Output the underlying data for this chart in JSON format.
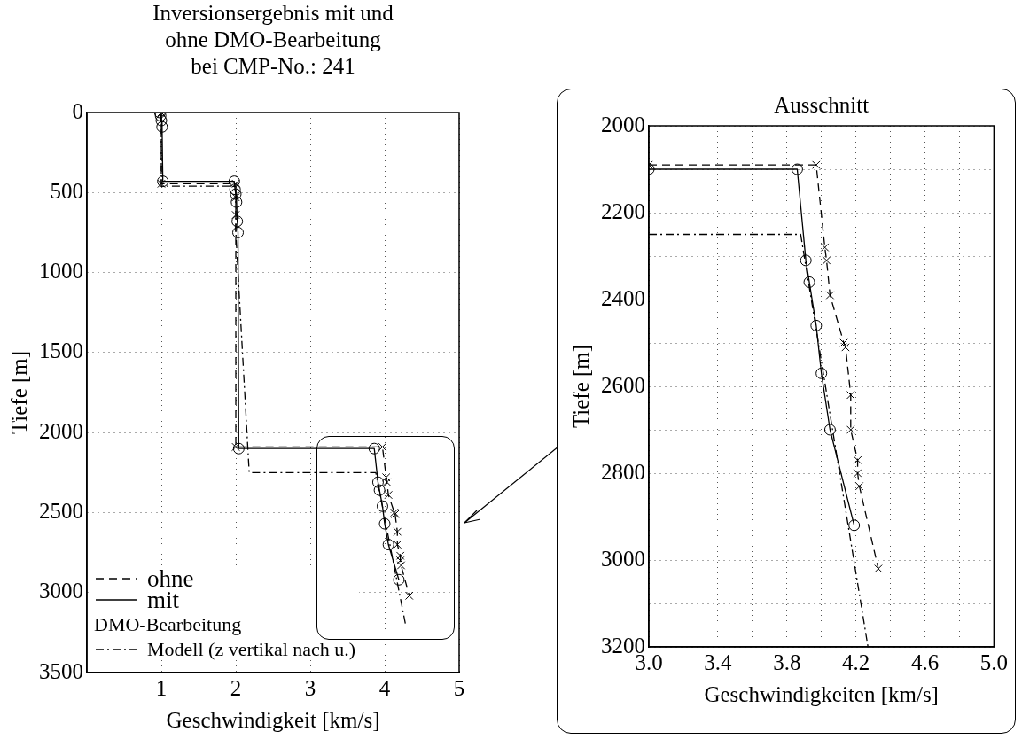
{
  "chart_data": [
    {
      "type": "line",
      "title": "Inversionsergebnis mit und\nohne DMO-Bearbeitung\nbei CMP-No.: 241",
      "xlabel": "Geschwindigkeit [km/s]",
      "ylabel": "Tiefe [m]",
      "legend_title": "DMO-Bearbeitung",
      "legend": "bottom left",
      "grid": true,
      "xlim": [
        0,
        5
      ],
      "xticks": [
        1,
        2,
        3,
        4,
        5
      ],
      "ylim": [
        3500,
        0
      ],
      "yticks": [
        0,
        500,
        1000,
        1500,
        2000,
        2500,
        3000,
        3500
      ],
      "series": [
        {
          "name": "ohne",
          "color": "#000000",
          "line_style": "dashed",
          "marker": "cross",
          "x": [
            1.0,
            1.0,
            2.0,
            2.0,
            2.0,
            2.0,
            3.97,
            4.02,
            4.03,
            4.05,
            4.13,
            4.14,
            4.17,
            4.17,
            4.21,
            4.21,
            4.22,
            4.33
          ],
          "values": [
            0,
            445,
            445,
            530,
            640,
            2090,
            2090,
            2280,
            2310,
            2390,
            2500,
            2510,
            2620,
            2700,
            2770,
            2800,
            2830,
            3020
          ]
        },
        {
          "name": "mit",
          "color": "#000000",
          "line_style": "solid",
          "marker": "circle",
          "x": [
            0.98,
            0.99,
            1.0,
            1.01,
            1.02,
            1.98,
            1.99,
            2.0,
            2.01,
            2.02,
            2.03,
            2.04,
            3.86,
            3.91,
            3.93,
            3.97,
            4.0,
            4.05,
            4.19
          ],
          "values": [
            0,
            20,
            50,
            90,
            430,
            430,
            480,
            510,
            560,
            680,
            750,
            2100,
            2100,
            2310,
            2360,
            2460,
            2570,
            2700,
            2920
          ]
        },
        {
          "name": "Modell (z vertikal nach u.)",
          "color": "#000000",
          "line_style": "dashdot",
          "marker": "none",
          "x": [
            1.0,
            1.0,
            2.0,
            2.0,
            2.18,
            3.88,
            4.28
          ],
          "values": [
            0,
            460,
            460,
            750,
            2250,
            2250,
            3200
          ]
        }
      ]
    },
    {
      "type": "line",
      "title": "Ausschnitt",
      "xlabel": "Geschwindigkeiten [km/s]",
      "ylabel": "Tiefe [m]",
      "grid": true,
      "xlim": [
        3,
        5
      ],
      "xticks": [
        {
          "value": 3,
          "label": "3.0"
        },
        {
          "value": 3.2,
          "label": null
        },
        {
          "value": 3.4,
          "label": "3.4"
        },
        {
          "value": 3.6,
          "label": null
        },
        {
          "value": 3.8,
          "label": "3.8"
        },
        {
          "value": 4,
          "label": null
        },
        {
          "value": 4.2,
          "label": "4.2"
        },
        {
          "value": 4.4,
          "label": null
        },
        {
          "value": 4.6,
          "label": "4.6"
        },
        {
          "value": 4.8,
          "label": null
        },
        {
          "value": 5,
          "label": "5.0"
        }
      ],
      "ylim": [
        3200,
        2000
      ],
      "yticks": [
        2000,
        {
          "value": 2100,
          "label": null
        },
        2200,
        {
          "value": 2300,
          "label": null
        },
        2400,
        {
          "value": 2500,
          "label": null
        },
        2600,
        {
          "value": 2700,
          "label": null
        },
        2800,
        {
          "value": 2900,
          "label": null
        },
        3000,
        {
          "value": 3100,
          "label": null
        },
        3200
      ],
      "series": [
        {
          "color": "#000000",
          "line_style": "dashed",
          "marker": "cross",
          "x": [
            3.0,
            3.97,
            4.02,
            4.03,
            4.05,
            4.13,
            4.14,
            4.17,
            4.17,
            4.21,
            4.21,
            4.22,
            4.33
          ],
          "values": [
            2090,
            2090,
            2280,
            2310,
            2390,
            2500,
            2510,
            2620,
            2700,
            2770,
            2800,
            2830,
            3020
          ]
        },
        {
          "color": "#000000",
          "line_style": "solid",
          "marker": "circle",
          "x": [
            3.0,
            3.86,
            3.91,
            3.93,
            3.97,
            4.0,
            4.05,
            4.19
          ],
          "values": [
            2100,
            2100,
            2310,
            2360,
            2460,
            2570,
            2700,
            2920
          ]
        },
        {
          "color": "#000000",
          "line_style": "dashdot",
          "marker": "none",
          "x": [
            3.0,
            3.88,
            4.27
          ],
          "values": [
            2250,
            2250,
            3200
          ]
        }
      ]
    }
  ]
}
